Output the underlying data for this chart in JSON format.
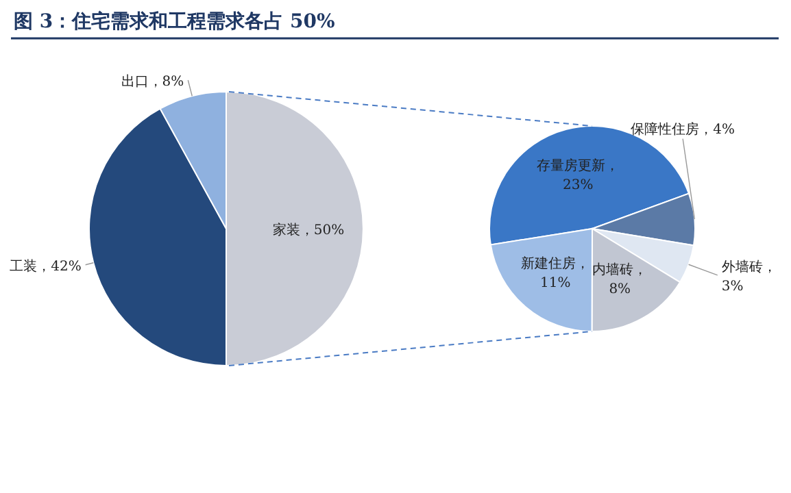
{
  "chart_data": [
    {
      "type": "pie",
      "title": "图 3：住宅需求和工程需求各占 50%",
      "categories": [
        "家装",
        "工装",
        "出口"
      ],
      "values": [
        50,
        42,
        8
      ],
      "colors": [
        "#c9ccd6",
        "#24497c",
        "#8fb1df"
      ],
      "value_labels": [
        "，50%",
        "，42%",
        "，8%"
      ]
    },
    {
      "type": "pie",
      "categories": [
        "存量房更新",
        "保障性住房",
        "外墙砖",
        "内墙砖",
        "新建住房"
      ],
      "values": [
        23,
        4,
        3,
        8,
        11
      ],
      "colors": [
        "#3a77c6",
        "#5b7aa6",
        "#dfe7f2",
        "#c1c6d2",
        "#9ebde6"
      ],
      "value_labels": [
        "，23%",
        "，4%",
        "，3%",
        "，8%",
        "，11%"
      ]
    }
  ]
}
